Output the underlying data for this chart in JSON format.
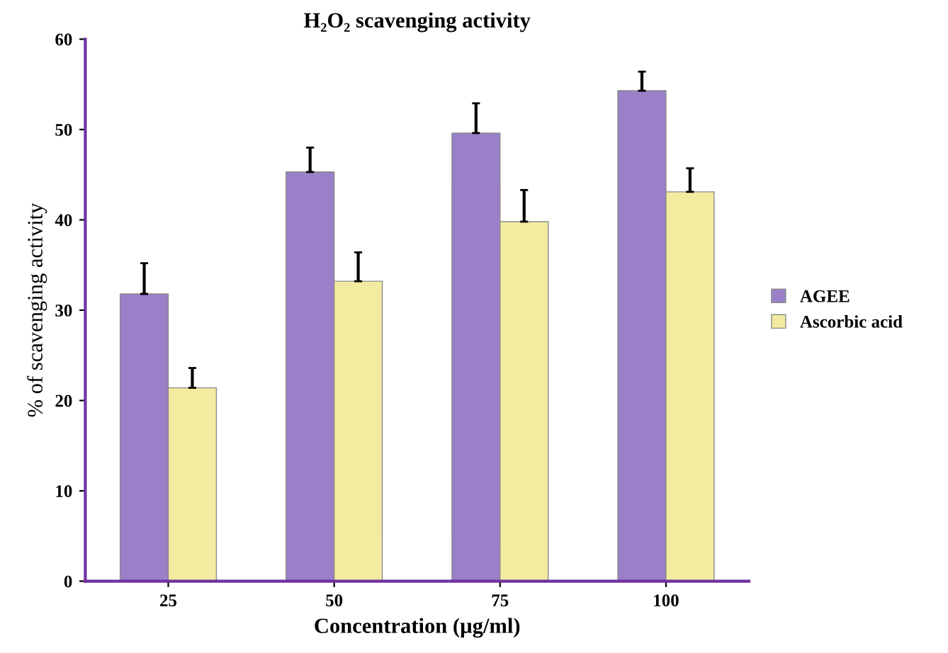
{
  "chart_data": {
    "type": "bar",
    "title": "H₂O₂ scavenging activity",
    "xlabel": "Concentration (µg/ml)",
    "ylabel": "% of scavenging activity",
    "categories": [
      "25",
      "50",
      "75",
      "100"
    ],
    "series": [
      {
        "name": "AGEE",
        "color": "#9b7fc8",
        "values": [
          31.8,
          45.3,
          49.6,
          54.3
        ],
        "errors": [
          [
            31.8,
            35.2
          ],
          [
            45.3,
            48.0
          ],
          [
            49.6,
            52.9
          ],
          [
            54.3,
            56.4
          ]
        ]
      },
      {
        "name": "Ascorbic acid",
        "color": "#f3eca0",
        "values": [
          21.4,
          33.2,
          39.8,
          43.1
        ],
        "errors": [
          [
            21.4,
            23.6
          ],
          [
            33.2,
            36.4
          ],
          [
            39.8,
            43.3
          ],
          [
            43.1,
            45.7
          ]
        ]
      }
    ],
    "ylim": [
      0,
      60
    ],
    "yticks": [
      0,
      10,
      20,
      30,
      40,
      50,
      60
    ],
    "grid": false,
    "legend": "right"
  }
}
